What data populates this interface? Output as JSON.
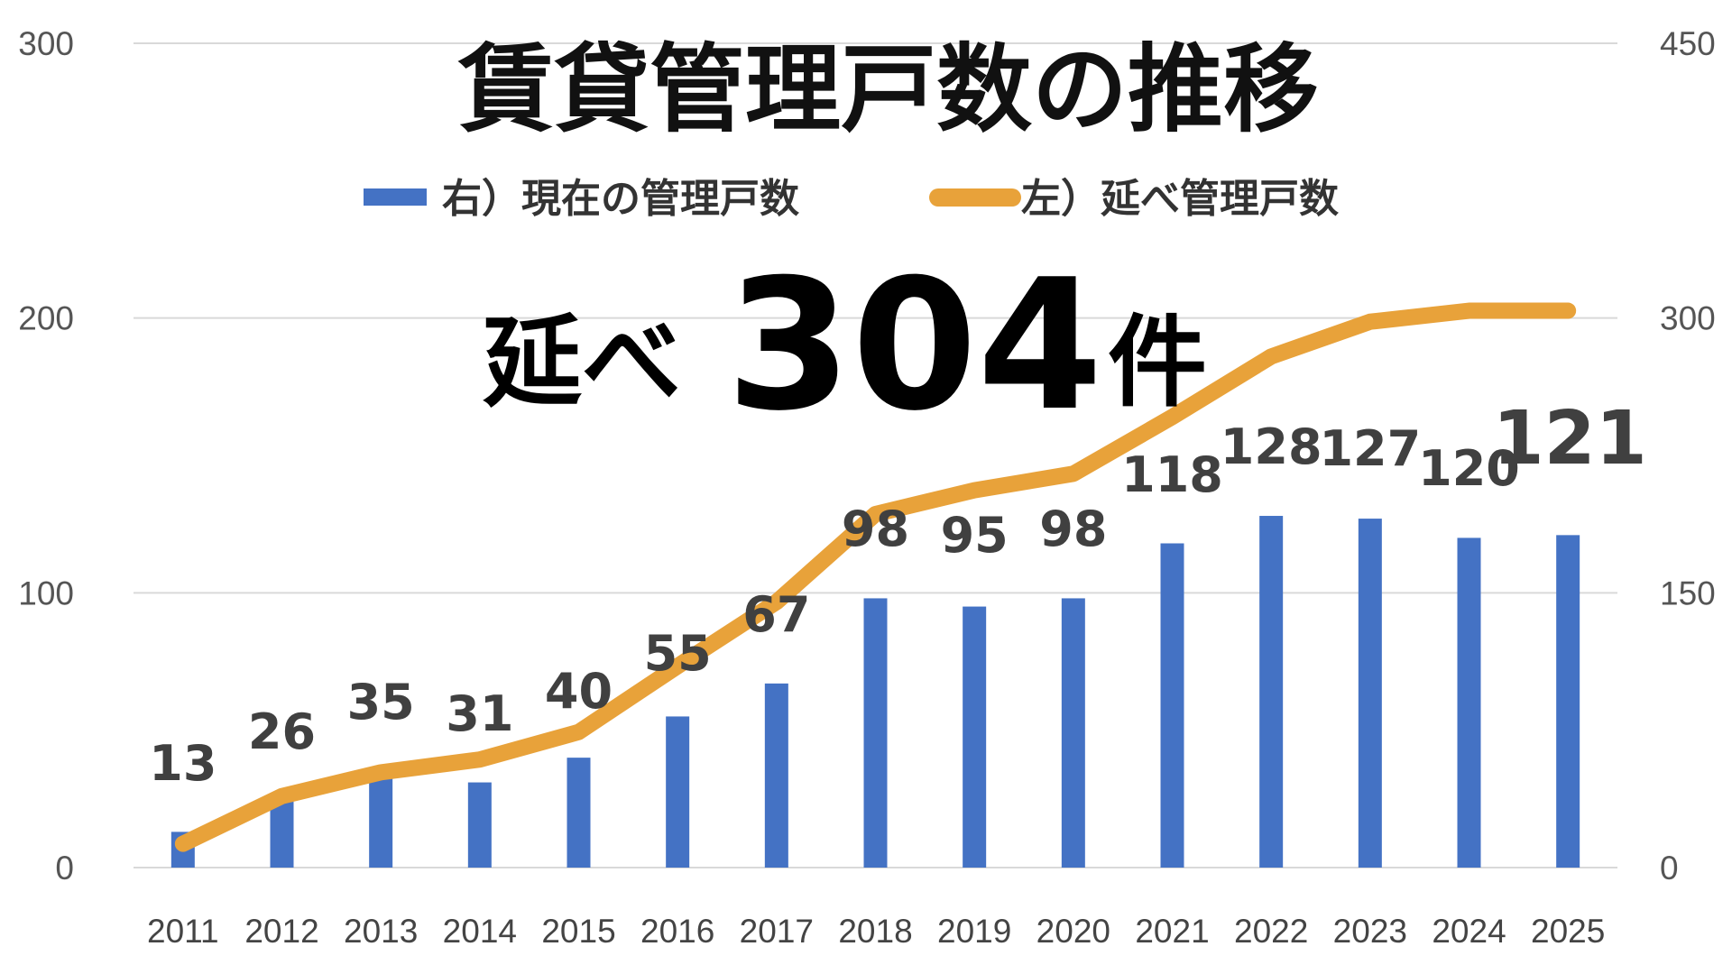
{
  "colors": {
    "bar": "#4472C4",
    "line": "#E8A23A",
    "grid": "#D9D9D9"
  },
  "title": "賃貸管理戸数の推移",
  "legend": {
    "bar_label": "右）現在の管理戸数",
    "line_label": "左）延べ管理戸数"
  },
  "headline": {
    "prefix": "延べ",
    "number": "304",
    "suffix": "件"
  },
  "chart_data": {
    "type": "bar",
    "title": "賃貸管理戸数の推移",
    "categories": [
      "2011",
      "2012",
      "2013",
      "2014",
      "2015",
      "2016",
      "2017",
      "2018",
      "2019",
      "2020",
      "2021",
      "2022",
      "2023",
      "2024",
      "2025"
    ],
    "left_axis": {
      "ticks": [
        "0",
        "100",
        "200",
        "300"
      ],
      "range": [
        0,
        300
      ]
    },
    "right_axis": {
      "ticks": [
        "0",
        "150",
        "300",
        "450"
      ],
      "range": [
        0,
        450
      ]
    },
    "grid": true,
    "legend_position": "top",
    "series": [
      {
        "name": "右）現在の管理戸数",
        "type": "bar",
        "axis": "left",
        "values": [
          13,
          26,
          35,
          31,
          40,
          55,
          67,
          98,
          95,
          98,
          118,
          128,
          127,
          120,
          121
        ],
        "labels": [
          "13",
          "26",
          "35",
          "31",
          "40",
          "55",
          "67",
          "98",
          "95",
          "98",
          "118",
          "128",
          "127",
          "120",
          "121"
        ]
      },
      {
        "name": "左）延べ管理戸数",
        "type": "line",
        "axis": "right",
        "values": [
          13,
          39,
          52,
          59,
          74,
          110,
          145,
          193,
          206,
          215,
          246,
          279,
          298,
          304,
          304
        ]
      }
    ]
  }
}
